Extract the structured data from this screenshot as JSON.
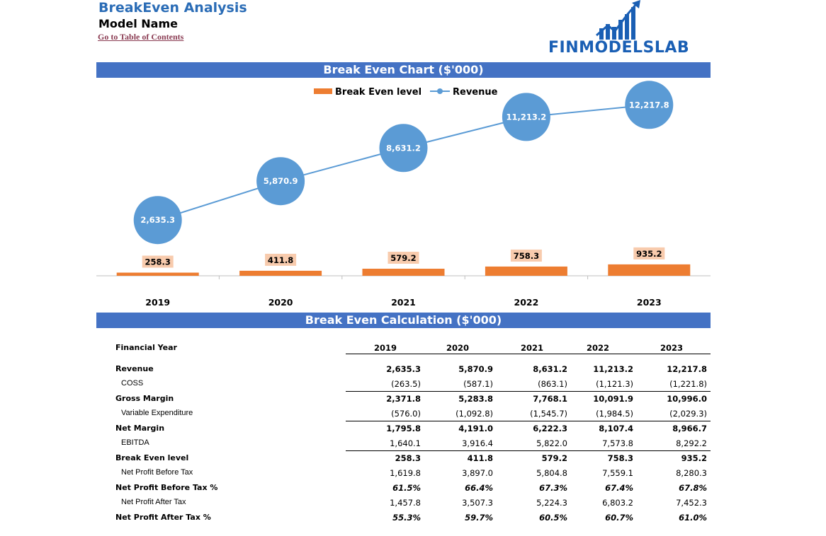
{
  "header": {
    "title": "BreakEven Analysis",
    "model_name": "Model Name",
    "toc_link": "Go to Table of Contents",
    "logo_text": "FINMODELSLAB"
  },
  "colors": {
    "band": "#4472c4",
    "bar": "#ed7d31",
    "line": "#5b9bd5",
    "bar_label_bg": "#f8cbad"
  },
  "chart_section": {
    "title": "Break Even Chart ($'000)"
  },
  "chart_data": {
    "type": "bar",
    "categories": [
      "2019",
      "2020",
      "2021",
      "2022",
      "2023"
    ],
    "series": [
      {
        "name": "Break Even level",
        "type": "bar",
        "values": [
          258.3,
          411.8,
          579.2,
          758.3,
          935.2
        ],
        "labels": [
          "258.3",
          "411.8",
          "579.2",
          "758.3",
          "935.2"
        ]
      },
      {
        "name": "Revenue",
        "type": "line",
        "values": [
          2635.3,
          5870.9,
          8631.2,
          11213.2,
          12217.8
        ],
        "labels": [
          "2,635.3",
          "5,870.9",
          "8,631.2",
          "11,213.2",
          "12,217.8"
        ]
      }
    ],
    "title": "Break Even Chart ($'000)",
    "legend": "top-center",
    "grid": false,
    "ylim": [
      0,
      14000
    ]
  },
  "calc": {
    "title": "Break Even Calculation ($'000)",
    "header_label": "Financial Year",
    "years": [
      "2019",
      "2020",
      "2021",
      "2022",
      "2023"
    ],
    "rows": [
      {
        "label": "Revenue",
        "style": "bold",
        "values": [
          "2,635.3",
          "5,870.9",
          "8,631.2",
          "11,213.2",
          "12,217.8"
        ]
      },
      {
        "label": "COSS",
        "style": "sub",
        "values": [
          "(263.5)",
          "(587.1)",
          "(863.1)",
          "(1,121.3)",
          "(1,221.8)"
        ]
      },
      {
        "label": "Gross Margin",
        "style": "bold",
        "values": [
          "2,371.8",
          "5,283.8",
          "7,768.1",
          "10,091.9",
          "10,996.0"
        ]
      },
      {
        "label": "Variable Expenditure",
        "style": "sub",
        "values": [
          "(576.0)",
          "(1,092.8)",
          "(1,545.7)",
          "(1,984.5)",
          "(2,029.3)"
        ]
      },
      {
        "label": "Net Margin",
        "style": "bold",
        "values": [
          "1,795.8",
          "4,191.0",
          "6,222.3",
          "8,107.4",
          "8,966.7"
        ]
      },
      {
        "label": "EBITDA",
        "style": "sub",
        "values": [
          "1,640.1",
          "3,916.4",
          "5,822.0",
          "7,573.8",
          "8,292.2"
        ]
      },
      {
        "label": "Break Even level",
        "style": "bold",
        "values": [
          "258.3",
          "411.8",
          "579.2",
          "758.3",
          "935.2"
        ]
      },
      {
        "label": "Net Profit Before Tax",
        "style": "sub",
        "values": [
          "1,619.8",
          "3,897.0",
          "5,804.8",
          "7,559.1",
          "8,280.3"
        ]
      },
      {
        "label": "Net Profit Before Tax %",
        "style": "pct",
        "values": [
          "61.5%",
          "66.4%",
          "67.3%",
          "67.4%",
          "67.8%"
        ]
      },
      {
        "label": "Net Profit After Tax",
        "style": "sub",
        "values": [
          "1,457.8",
          "3,507.3",
          "5,224.3",
          "6,803.2",
          "7,452.3"
        ]
      },
      {
        "label": "Net Profit After Tax %",
        "style": "pct",
        "values": [
          "55.3%",
          "59.7%",
          "60.5%",
          "60.7%",
          "61.0%"
        ]
      }
    ]
  }
}
